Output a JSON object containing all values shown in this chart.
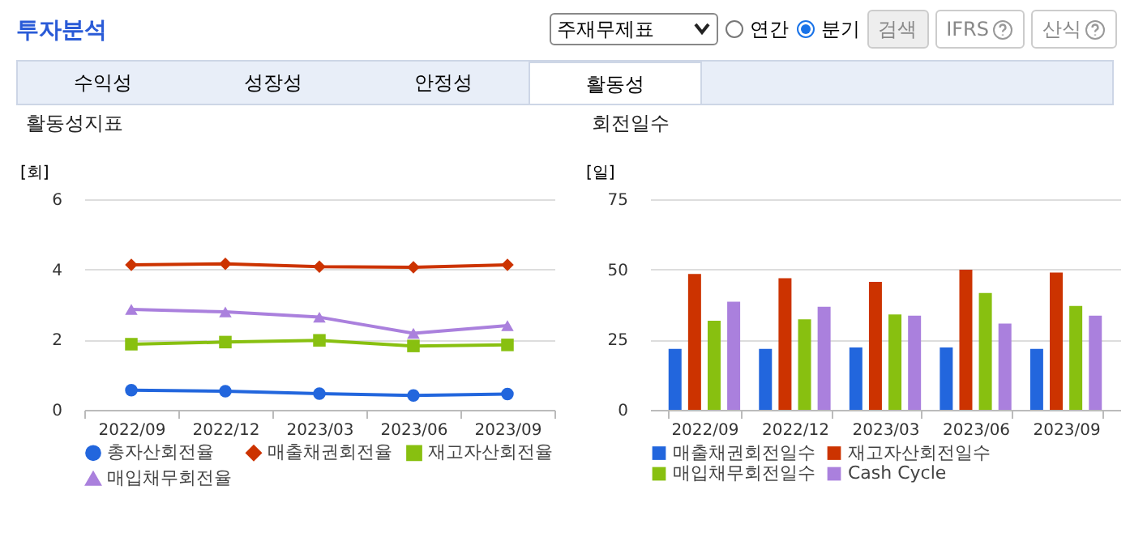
{
  "chart_data": [
    {
      "type": "line",
      "title": "활동성지표",
      "ylabel": "[회]",
      "categories": [
        "2022/09",
        "2022/12",
        "2023/03",
        "2023/06",
        "2023/09"
      ],
      "ylim": [
        0,
        6
      ],
      "yticks": [
        0,
        2,
        4,
        6
      ],
      "grid": "y",
      "legend": "bottom",
      "annotations": [
        "투자분석",
        "주재무제표",
        "연간",
        "분기",
        "검색",
        "IFRS",
        "산식",
        "수익성",
        "성장성",
        "안정성",
        "활동성"
      ],
      "series": [
        {
          "name": "총자산회전율",
          "color": "#2266dd",
          "marker": "circle",
          "values": [
            0.56,
            0.53,
            0.46,
            0.41,
            0.45
          ]
        },
        {
          "name": "매출채권회전율",
          "color": "#cc3300",
          "marker": "diamond",
          "values": [
            4.13,
            4.16,
            4.08,
            4.06,
            4.13
          ]
        },
        {
          "name": "재고자산회전율",
          "color": "#88c010",
          "marker": "square",
          "values": [
            1.87,
            1.93,
            1.98,
            1.82,
            1.85
          ]
        },
        {
          "name": "매입채무회전율",
          "color": "#aa80dd",
          "marker": "triangle",
          "values": [
            2.86,
            2.79,
            2.64,
            2.18,
            2.4
          ]
        }
      ]
    },
    {
      "type": "bar",
      "title": "회전일수",
      "ylabel": "[일]",
      "categories": [
        "2022/09",
        "2022/12",
        "2023/03",
        "2023/06",
        "2023/09"
      ],
      "ylim": [
        0,
        75
      ],
      "yticks": [
        0,
        25,
        50,
        75
      ],
      "grid": "y",
      "legend": "bottom",
      "series": [
        {
          "name": "매출채권회전일수",
          "color": "#2266dd",
          "values": [
            21.7,
            21.7,
            22.2,
            22.2,
            21.7
          ]
        },
        {
          "name": "재고자산회전일수",
          "color": "#cc3300",
          "values": [
            48.4,
            46.9,
            45.6,
            49.9,
            48.9
          ]
        },
        {
          "name": "매입채무회전일수",
          "color": "#88c010",
          "values": [
            31.7,
            32.2,
            34.0,
            41.6,
            37.0
          ]
        },
        {
          "name": "Cash Cycle",
          "color": "#aa80dd",
          "values": [
            38.5,
            36.7,
            33.5,
            30.7,
            33.5
          ]
        }
      ]
    }
  ]
}
